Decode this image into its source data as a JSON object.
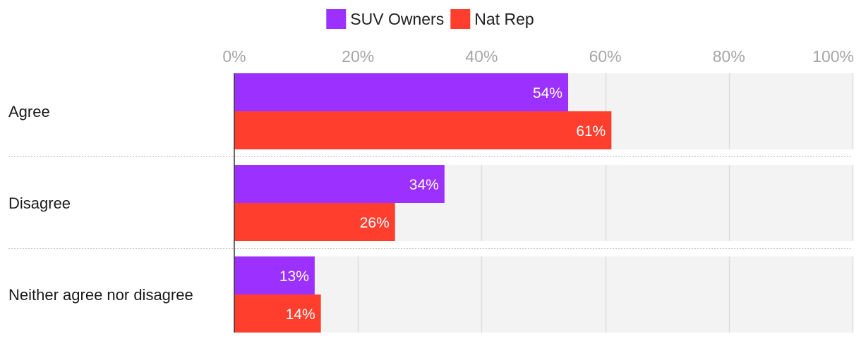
{
  "chart_data": {
    "type": "bar",
    "orientation": "horizontal",
    "categories": [
      "Agree",
      "Disagree",
      "Neither agree nor disagree"
    ],
    "series": [
      {
        "name": "SUV Owners",
        "color": "#9b30ff",
        "values": [
          54,
          34,
          13
        ]
      },
      {
        "name": "Nat Rep",
        "color": "#ff3e2e",
        "values": [
          61,
          26,
          14
        ]
      }
    ],
    "x_ticks": [
      0,
      20,
      40,
      60,
      80,
      100
    ],
    "x_tick_suffix": "%",
    "xlim": [
      0,
      100
    ],
    "value_suffix": "%",
    "legend_position": "top-center",
    "grid": true,
    "title": "",
    "xlabel": "",
    "ylabel": ""
  }
}
